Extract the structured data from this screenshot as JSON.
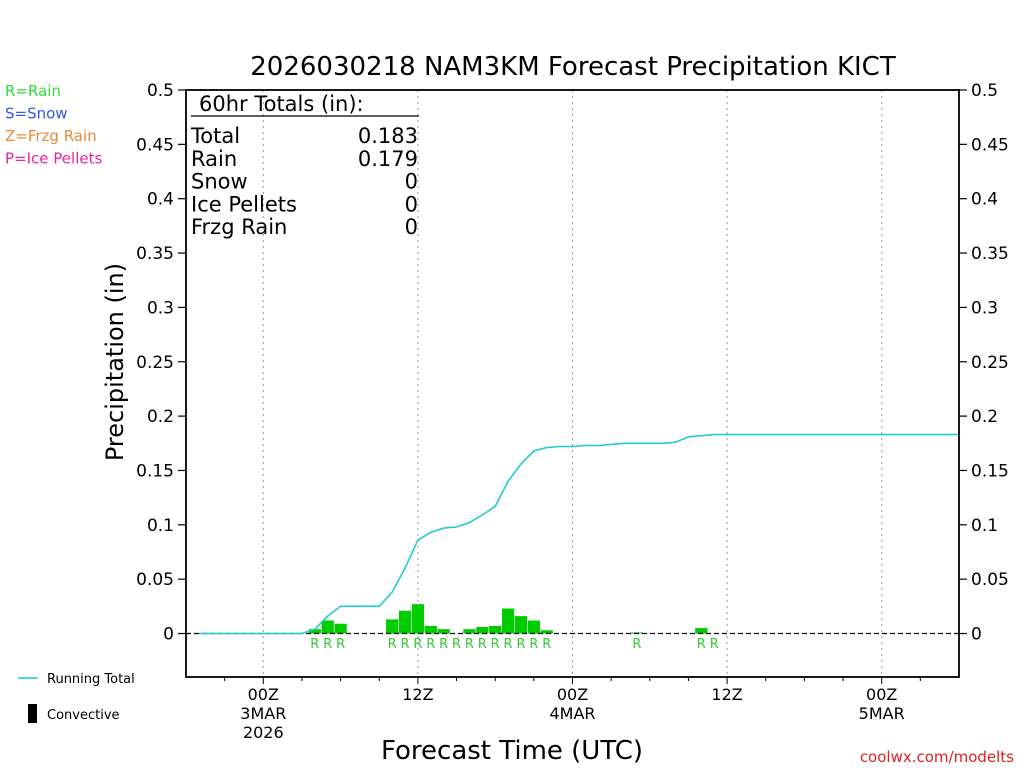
{
  "chart_data": {
    "type": "bar+line",
    "title": "2026030218 NAM3KM Forecast Precipitation KICT",
    "ylabel": "Precipitation (in)",
    "xlabel": "Forecast Time (UTC)",
    "ylim": [
      -0.04,
      0.5
    ],
    "xlim_hours": [
      -6,
      54
    ],
    "y_ticks": [
      "0",
      "0.05",
      "0.1",
      "0.15",
      "0.2",
      "0.25",
      "0.3",
      "0.35",
      "0.4",
      "0.45",
      "0.5"
    ],
    "y_tick_values": [
      0,
      0.05,
      0.1,
      0.15,
      0.2,
      0.25,
      0.3,
      0.35,
      0.4,
      0.45,
      0.5
    ],
    "x_ticks": [
      {
        "hour": 0,
        "label": "00Z",
        "date": "3MAR",
        "year": "2026"
      },
      {
        "hour": 12,
        "label": "12Z",
        "date": "",
        "year": ""
      },
      {
        "hour": 24,
        "label": "00Z",
        "date": "4MAR",
        "year": ""
      },
      {
        "hour": 36,
        "label": "12Z",
        "date": "",
        "year": ""
      },
      {
        "hour": 48,
        "label": "00Z",
        "date": "5MAR",
        "year": ""
      }
    ],
    "grid_vertical_hours": [
      0,
      12,
      24,
      36,
      48
    ],
    "totals_box": {
      "heading": "60hr Totals (in):",
      "rows": [
        {
          "label": "Total",
          "value": "0.183"
        },
        {
          "label": "Rain",
          "value": "0.179"
        },
        {
          "label": "Snow",
          "value": "0"
        },
        {
          "label": "Ice Pellets",
          "value": "0"
        },
        {
          "label": "Frzg Rain",
          "value": "0"
        }
      ]
    },
    "precip_type_legend": [
      {
        "text": "R=Rain",
        "color": "#33dd33"
      },
      {
        "text": "S=Snow",
        "color": "#3355ee"
      },
      {
        "text": "Z=Frzg Rain",
        "color": "#ee8833"
      },
      {
        "text": "P=Ice Pellets",
        "color": "#ee2299"
      }
    ],
    "series": [
      {
        "name": "Running Total",
        "type": "line",
        "color": "#22cccc",
        "hours": [
          -5,
          3,
          4,
          5,
          6,
          7,
          8,
          9,
          10,
          11,
          12,
          13,
          14,
          15,
          16,
          17,
          18,
          19,
          20,
          21,
          22,
          23,
          24,
          25,
          26,
          27,
          28,
          29,
          30,
          31,
          32,
          33,
          34,
          35,
          36,
          37,
          38,
          39,
          40,
          41,
          42,
          43,
          44,
          45,
          46,
          47,
          48,
          49,
          50,
          51,
          52,
          53,
          54
        ],
        "values": [
          0,
          0,
          0.004,
          0.016,
          0.025,
          0.025,
          0.025,
          0.025,
          0.038,
          0.06,
          0.086,
          0.093,
          0.097,
          0.098,
          0.102,
          0.109,
          0.117,
          0.14,
          0.156,
          0.168,
          0.171,
          0.172,
          0.172,
          0.173,
          0.173,
          0.174,
          0.175,
          0.175,
          0.175,
          0.175,
          0.176,
          0.181,
          0.182,
          0.183,
          0.183,
          0.183,
          0.183,
          0.183,
          0.183,
          0.183,
          0.183,
          0.183,
          0.183,
          0.183,
          0.183,
          0.183,
          0.183,
          0.183,
          0.183,
          0.183,
          0.183,
          0.183,
          0.183
        ]
      },
      {
        "name": "Hourly Precip",
        "type": "bar",
        "color": "#00cc00",
        "hours": [
          4,
          5,
          6,
          10,
          11,
          12,
          13,
          14,
          16,
          17,
          18,
          19,
          20,
          21,
          22,
          29,
          34
        ],
        "values": [
          0.004,
          0.012,
          0.009,
          0.013,
          0.021,
          0.027,
          0.007,
          0.004,
          0.004,
          0.006,
          0.007,
          0.023,
          0.016,
          0.012,
          0.003,
          0.001,
          0.005
        ]
      }
    ],
    "type_markers": {
      "letter": "R",
      "hours": [
        4,
        5,
        6,
        10,
        11,
        12,
        13,
        14,
        15,
        16,
        17,
        18,
        19,
        20,
        21,
        22,
        29,
        34,
        35
      ]
    },
    "legend": {
      "placement": "bottom-left",
      "items": [
        {
          "text": "Running Total",
          "kind": "line",
          "color": "#22cccc"
        },
        {
          "text": "Convective",
          "kind": "bar",
          "color": "#000000"
        }
      ]
    },
    "credit": "coolwx.com/modelts"
  }
}
